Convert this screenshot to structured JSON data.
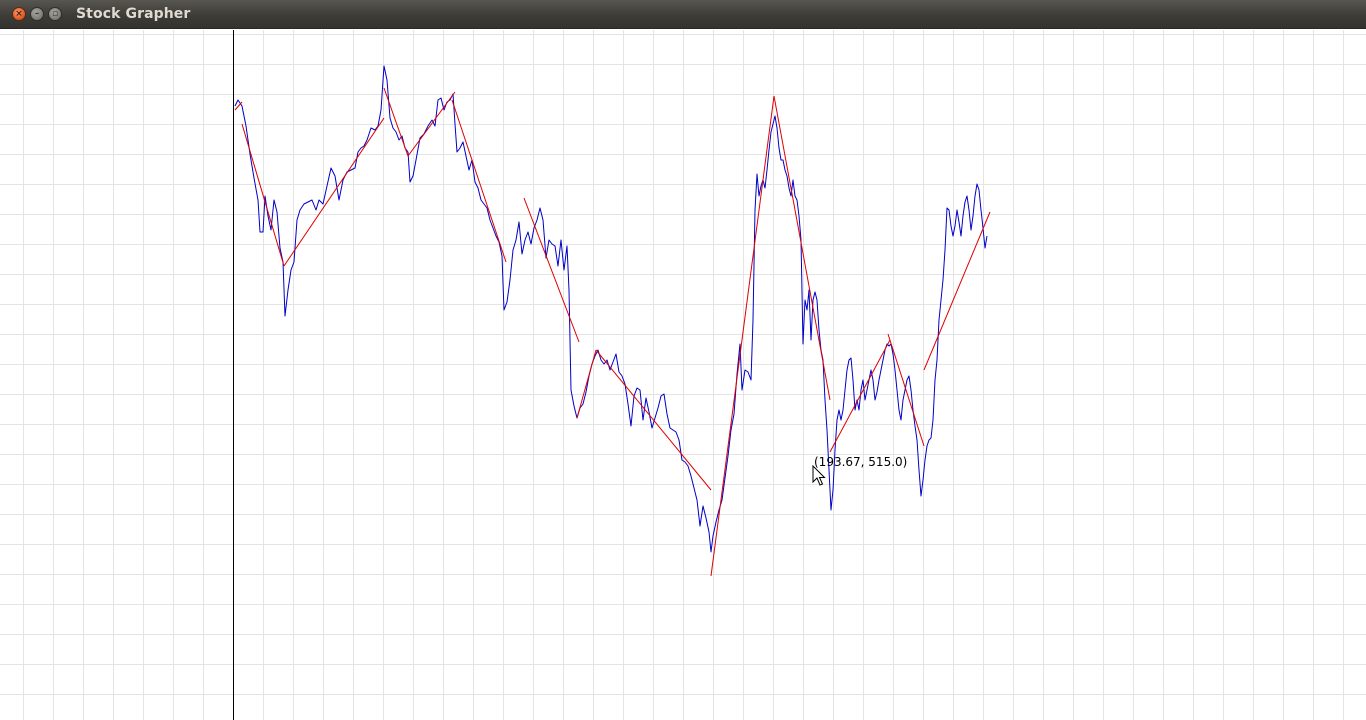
{
  "window": {
    "title": "Stock Grapher",
    "buttons": {
      "close_glyph": "×",
      "minimize_glyph": "–",
      "maximize_glyph": "▫"
    }
  },
  "colors": {
    "price_line": "#0000c8",
    "trend_line": "#e00000",
    "grid": "#e4e4e4",
    "axis": "#000000"
  },
  "cursor": {
    "readout": "(193.67, 515.0)",
    "icon": "arrow-cursor-icon"
  },
  "chart_data": {
    "type": "line",
    "title": "",
    "xlabel": "",
    "ylabel": "",
    "grid": true,
    "legend": "none",
    "series": [
      {
        "kind": "price",
        "points": [
          [
            235,
            106
          ],
          [
            238,
            100
          ],
          [
            242,
            106
          ],
          [
            246,
            126
          ],
          [
            250,
            154
          ],
          [
            254,
            178
          ],
          [
            258,
            200
          ],
          [
            260,
            232
          ],
          [
            263,
            232
          ],
          [
            265,
            196
          ],
          [
            268,
            216
          ],
          [
            271,
            230
          ],
          [
            274,
            200
          ],
          [
            277,
            212
          ],
          [
            280,
            248
          ],
          [
            283,
            262
          ],
          [
            285,
            316
          ],
          [
            288,
            290
          ],
          [
            291,
            270
          ],
          [
            294,
            262
          ],
          [
            297,
            220
          ],
          [
            300,
            210
          ],
          [
            304,
            204
          ],
          [
            308,
            202
          ],
          [
            312,
            200
          ],
          [
            316,
            210
          ],
          [
            319,
            200
          ],
          [
            323,
            204
          ],
          [
            327,
            186
          ],
          [
            331,
            168
          ],
          [
            335,
            176
          ],
          [
            339,
            200
          ],
          [
            343,
            180
          ],
          [
            347,
            172
          ],
          [
            351,
            170
          ],
          [
            355,
            168
          ],
          [
            358,
            152
          ],
          [
            361,
            148
          ],
          [
            364,
            146
          ],
          [
            367,
            140
          ],
          [
            371,
            128
          ],
          [
            375,
            130
          ],
          [
            378,
            126
          ],
          [
            381,
            110
          ],
          [
            384,
            66
          ],
          [
            387,
            80
          ],
          [
            390,
            118
          ],
          [
            393,
            128
          ],
          [
            396,
            132
          ],
          [
            399,
            140
          ],
          [
            402,
            136
          ],
          [
            405,
            148
          ],
          [
            408,
            152
          ],
          [
            410,
            182
          ],
          [
            413,
            176
          ],
          [
            416,
            160
          ],
          [
            420,
            138
          ],
          [
            424,
            134
          ],
          [
            428,
            126
          ],
          [
            432,
            120
          ],
          [
            435,
            126
          ],
          [
            438,
            100
          ],
          [
            441,
            98
          ],
          [
            444,
            110
          ],
          [
            447,
            102
          ],
          [
            450,
            100
          ],
          [
            453,
            94
          ],
          [
            455,
            124
          ],
          [
            457,
            152
          ],
          [
            460,
            148
          ],
          [
            463,
            142
          ],
          [
            466,
            156
          ],
          [
            469,
            170
          ],
          [
            472,
            160
          ],
          [
            475,
            182
          ],
          [
            478,
            188
          ],
          [
            481,
            200
          ],
          [
            484,
            204
          ],
          [
            487,
            208
          ],
          [
            490,
            220
          ],
          [
            493,
            228
          ],
          [
            496,
            236
          ],
          [
            499,
            242
          ],
          [
            502,
            256
          ],
          [
            504,
            310
          ],
          [
            507,
            302
          ],
          [
            510,
            280
          ],
          [
            513,
            250
          ],
          [
            516,
            240
          ],
          [
            519,
            222
          ],
          [
            522,
            254
          ],
          [
            525,
            240
          ],
          [
            528,
            232
          ],
          [
            531,
            244
          ],
          [
            534,
            228
          ],
          [
            537,
            220
          ],
          [
            540,
            208
          ],
          [
            543,
            220
          ],
          [
            546,
            258
          ],
          [
            549,
            240
          ],
          [
            552,
            244
          ],
          [
            555,
            246
          ],
          [
            558,
            266
          ],
          [
            561,
            240
          ],
          [
            564,
            270
          ],
          [
            567,
            246
          ],
          [
            569,
            290
          ],
          [
            571,
            390
          ],
          [
            574,
            406
          ],
          [
            577,
            418
          ],
          [
            580,
            408
          ],
          [
            583,
            404
          ],
          [
            586,
            392
          ],
          [
            589,
            376
          ],
          [
            592,
            364
          ],
          [
            595,
            356
          ],
          [
            598,
            350
          ],
          [
            601,
            360
          ],
          [
            604,
            364
          ],
          [
            607,
            360
          ],
          [
            610,
            370
          ],
          [
            613,
            362
          ],
          [
            616,
            354
          ],
          [
            619,
            372
          ],
          [
            622,
            376
          ],
          [
            625,
            384
          ],
          [
            628,
            404
          ],
          [
            631,
            426
          ],
          [
            634,
            396
          ],
          [
            637,
            388
          ],
          [
            640,
            390
          ],
          [
            643,
            420
          ],
          [
            646,
            398
          ],
          [
            649,
            412
          ],
          [
            652,
            428
          ],
          [
            655,
            418
          ],
          [
            658,
            408
          ],
          [
            661,
            396
          ],
          [
            664,
            394
          ],
          [
            667,
            414
          ],
          [
            670,
            428
          ],
          [
            673,
            430
          ],
          [
            676,
            432
          ],
          [
            679,
            440
          ],
          [
            682,
            460
          ],
          [
            685,
            462
          ],
          [
            688,
            466
          ],
          [
            691,
            476
          ],
          [
            694,
            488
          ],
          [
            697,
            500
          ],
          [
            700,
            526
          ],
          [
            703,
            506
          ],
          [
            706,
            518
          ],
          [
            709,
            532
          ],
          [
            711,
            552
          ],
          [
            713,
            536
          ],
          [
            716,
            522
          ],
          [
            719,
            510
          ],
          [
            722,
            500
          ],
          [
            725,
            478
          ],
          [
            728,
            456
          ],
          [
            731,
            430
          ],
          [
            734,
            414
          ],
          [
            737,
            374
          ],
          [
            740,
            344
          ],
          [
            742,
            390
          ],
          [
            745,
            370
          ],
          [
            748,
            372
          ],
          [
            751,
            380
          ],
          [
            753,
            320
          ],
          [
            755,
            210
          ],
          [
            757,
            174
          ],
          [
            759,
            196
          ],
          [
            761,
            186
          ],
          [
            763,
            180
          ],
          [
            765,
            188
          ],
          [
            767,
            170
          ],
          [
            769,
            150
          ],
          [
            771,
            132
          ],
          [
            773,
            124
          ],
          [
            775,
            116
          ],
          [
            777,
            128
          ],
          [
            779,
            148
          ],
          [
            781,
            160
          ],
          [
            783,
            160
          ],
          [
            785,
            170
          ],
          [
            787,
            176
          ],
          [
            789,
            188
          ],
          [
            791,
            196
          ],
          [
            793,
            180
          ],
          [
            795,
            196
          ],
          [
            797,
            200
          ],
          [
            799,
            216
          ],
          [
            801,
            240
          ],
          [
            803,
            344
          ],
          [
            805,
            300
          ],
          [
            807,
            310
          ],
          [
            809,
            290
          ],
          [
            811,
            340
          ],
          [
            813,
            300
          ],
          [
            815,
            292
          ],
          [
            817,
            300
          ],
          [
            819,
            330
          ],
          [
            821,
            350
          ],
          [
            823,
            360
          ],
          [
            825,
            400
          ],
          [
            827,
            430
          ],
          [
            829,
            470
          ],
          [
            831,
            510
          ],
          [
            833,
            490
          ],
          [
            835,
            450
          ],
          [
            837,
            420
          ],
          [
            839,
            410
          ],
          [
            841,
            420
          ],
          [
            843,
            410
          ],
          [
            845,
            390
          ],
          [
            847,
            370
          ],
          [
            849,
            360
          ],
          [
            851,
            358
          ],
          [
            853,
            380
          ],
          [
            855,
            410
          ],
          [
            857,
            400
          ],
          [
            859,
            410
          ],
          [
            861,
            390
          ],
          [
            863,
            380
          ],
          [
            865,
            400
          ],
          [
            867,
            390
          ],
          [
            869,
            380
          ],
          [
            871,
            370
          ],
          [
            873,
            380
          ],
          [
            875,
            400
          ],
          [
            877,
            392
          ],
          [
            879,
            380
          ],
          [
            881,
            370
          ],
          [
            883,
            360
          ],
          [
            885,
            350
          ],
          [
            887,
            344
          ],
          [
            889,
            346
          ],
          [
            891,
            344
          ],
          [
            893,
            354
          ],
          [
            895,
            370
          ],
          [
            897,
            390
          ],
          [
            899,
            410
          ],
          [
            901,
            420
          ],
          [
            903,
            400
          ],
          [
            905,
            390
          ],
          [
            907,
            380
          ],
          [
            909,
            376
          ],
          [
            911,
            390
          ],
          [
            913,
            410
          ],
          [
            915,
            426
          ],
          [
            917,
            440
          ],
          [
            919,
            470
          ],
          [
            921,
            496
          ],
          [
            923,
            480
          ],
          [
            925,
            460
          ],
          [
            927,
            446
          ],
          [
            929,
            440
          ],
          [
            931,
            438
          ],
          [
            933,
            420
          ],
          [
            935,
            380
          ],
          [
            937,
            360
          ],
          [
            939,
            320
          ],
          [
            941,
            300
          ],
          [
            943,
            280
          ],
          [
            945,
            250
          ],
          [
            947,
            208
          ],
          [
            949,
            210
          ],
          [
            951,
            226
          ],
          [
            953,
            236
          ],
          [
            955,
            226
          ],
          [
            957,
            210
          ],
          [
            959,
            222
          ],
          [
            961,
            236
          ],
          [
            963,
            216
          ],
          [
            965,
            202
          ],
          [
            967,
            196
          ],
          [
            969,
            210
          ],
          [
            971,
            230
          ],
          [
            973,
            216
          ],
          [
            975,
            196
          ],
          [
            977,
            184
          ],
          [
            979,
            190
          ],
          [
            981,
            210
          ],
          [
            983,
            228
          ],
          [
            985,
            248
          ],
          [
            987,
            236
          ]
        ]
      },
      {
        "kind": "trend",
        "segments": [
          [
            [
              235,
              110
            ],
            [
              242,
              102
            ]
          ],
          [
            [
              242,
              124
            ],
            [
              284,
              266
            ]
          ],
          [
            [
              284,
              266
            ],
            [
              384,
              118
            ]
          ],
          [
            [
              384,
              88
            ],
            [
              408,
              156
            ]
          ],
          [
            [
              408,
              156
            ],
            [
              455,
              92
            ]
          ],
          [
            [
              452,
              100
            ],
            [
              506,
              262
            ]
          ],
          [
            [
              524,
              198
            ],
            [
              579,
              342
            ]
          ],
          [
            [
              577,
              418
            ],
            [
              596,
              350
            ]
          ],
          [
            [
              596,
              350
            ],
            [
              711,
              490
            ]
          ],
          [
            [
              711,
              576
            ],
            [
              774,
              96
            ]
          ],
          [
            [
              774,
              96
            ],
            [
              830,
              400
            ]
          ],
          [
            [
              830,
              452
            ],
            [
              890,
              340
            ]
          ],
          [
            [
              888,
              334
            ],
            [
              924,
              446
            ]
          ],
          [
            [
              924,
              370
            ],
            [
              990,
              212
            ]
          ]
        ]
      }
    ]
  }
}
